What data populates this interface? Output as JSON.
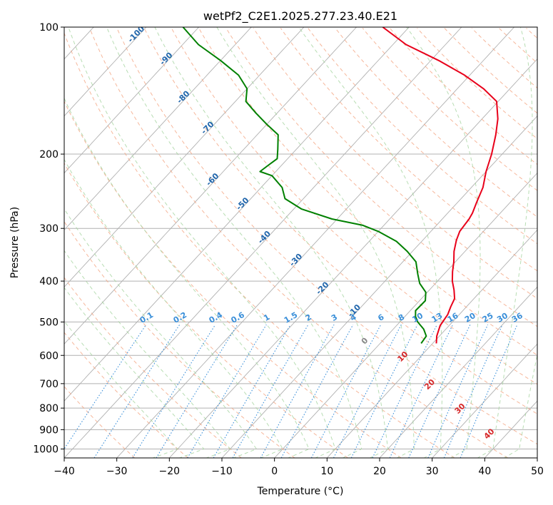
{
  "chart_data": {
    "type": "skewt",
    "title": "wetPf2_C2E1.2025.277.23.40.E21",
    "xlabel": "Temperature (°C)",
    "ylabel": "Pressure (hPa)",
    "xlim": [
      -40,
      50
    ],
    "ylim": [
      1050,
      100
    ],
    "y_scale": "log",
    "x_ticks": [
      -40,
      -30,
      -20,
      -10,
      0,
      10,
      20,
      30,
      40,
      50
    ],
    "x_tick_labels": [
      "−40",
      "−30",
      "−20",
      "−10",
      "0",
      "10",
      "20",
      "30",
      "40",
      "50"
    ],
    "y_ticks": [
      1000,
      900,
      800,
      700,
      600,
      500,
      400,
      300,
      200,
      100
    ],
    "y_tick_labels": [
      "1000",
      "900",
      "800",
      "700",
      "600",
      "500",
      "400",
      "300",
      "200",
      "100"
    ],
    "grid": true,
    "colors": {
      "temperature": "#e8001a",
      "dewpoint": "#008000",
      "isotherm_grid": "#b0b0b0",
      "dry_adiabat": "#f4a582",
      "moist_adiabat": "#a6d5a0",
      "mixing_ratio": "#3a8fd9",
      "freezing_level_curve": "#d2b48c",
      "isotherm_label": "#2166ac",
      "mixing_ratio_label": "#3a8fd9",
      "moist_label": "#d62728"
    },
    "series": [
      {
        "key": "temperature",
        "points": [
          [
            10.7,
            562
          ],
          [
            9.5,
            540
          ],
          [
            8.3,
            510
          ],
          [
            7.8,
            480
          ],
          [
            7.0,
            460
          ],
          [
            6.3,
            440
          ],
          [
            4.7,
            420
          ],
          [
            2.8,
            400
          ],
          [
            1.2,
            380
          ],
          [
            -0.3,
            360
          ],
          [
            -2.1,
            340
          ],
          [
            -3.6,
            320
          ],
          [
            -4.5,
            305
          ],
          [
            -4.7,
            295
          ],
          [
            -4.9,
            285
          ],
          [
            -5.3,
            276
          ],
          [
            -6.4,
            260
          ],
          [
            -7.8,
            240
          ],
          [
            -10.0,
            220
          ],
          [
            -12.0,
            200
          ],
          [
            -14.6,
            180
          ],
          [
            -17.0,
            165
          ],
          [
            -20.3,
            150
          ],
          [
            -25.0,
            140
          ],
          [
            -31.0,
            130
          ],
          [
            -38.5,
            120
          ],
          [
            -47.5,
            110
          ],
          [
            -55.0,
            100
          ]
        ]
      },
      {
        "key": "dewpoint",
        "points": [
          [
            7.8,
            562
          ],
          [
            7.5,
            540
          ],
          [
            5.8,
            520
          ],
          [
            3.4,
            500
          ],
          [
            2.0,
            485
          ],
          [
            1.0,
            470
          ],
          [
            1.1,
            445
          ],
          [
            -0.3,
            425
          ],
          [
            -3.0,
            405
          ],
          [
            -5.0,
            385
          ],
          [
            -7.5,
            360
          ],
          [
            -11.0,
            340
          ],
          [
            -14.8,
            322
          ],
          [
            -20.0,
            305
          ],
          [
            -24.0,
            295
          ],
          [
            -31.0,
            285
          ],
          [
            -38.5,
            270
          ],
          [
            -43.5,
            255
          ],
          [
            -46.0,
            240
          ],
          [
            -50.0,
            225
          ],
          [
            -53.0,
            220
          ],
          [
            -52.5,
            212
          ],
          [
            -52.0,
            205
          ],
          [
            -53.5,
            195
          ],
          [
            -56.0,
            180
          ],
          [
            -60.0,
            170
          ],
          [
            -64.0,
            160
          ],
          [
            -68.0,
            150
          ],
          [
            -70.0,
            140
          ],
          [
            -74.0,
            130
          ],
          [
            -80.0,
            120
          ],
          [
            -87.0,
            110
          ],
          [
            -93.0,
            100
          ]
        ]
      }
    ],
    "isotherm_labels": [
      {
        "value": -100,
        "text": "-100"
      },
      {
        "value": -90,
        "text": "-90"
      },
      {
        "value": -80,
        "text": "-80"
      },
      {
        "value": -70,
        "text": "-70"
      },
      {
        "value": -60,
        "text": "-60"
      },
      {
        "value": -50,
        "text": "-50"
      },
      {
        "value": -40,
        "text": "-40"
      },
      {
        "value": -30,
        "text": "-30"
      },
      {
        "value": -20,
        "text": "-20"
      },
      {
        "value": -10,
        "text": "-10"
      }
    ],
    "mixing_ratio_labels": [
      "0.1",
      "0.2",
      "0.4",
      "0.6",
      "1",
      "1.5",
      "2",
      "3",
      "4",
      "6",
      "8",
      "10",
      "13",
      "16",
      "20",
      "25",
      "30",
      "36"
    ],
    "moist_adiabat_labels": [
      {
        "value": 0,
        "text": "0"
      },
      {
        "value": 10,
        "text": "10"
      },
      {
        "value": 20,
        "text": "20"
      },
      {
        "value": 30,
        "text": "30"
      },
      {
        "value": 40,
        "text": "40"
      }
    ]
  }
}
